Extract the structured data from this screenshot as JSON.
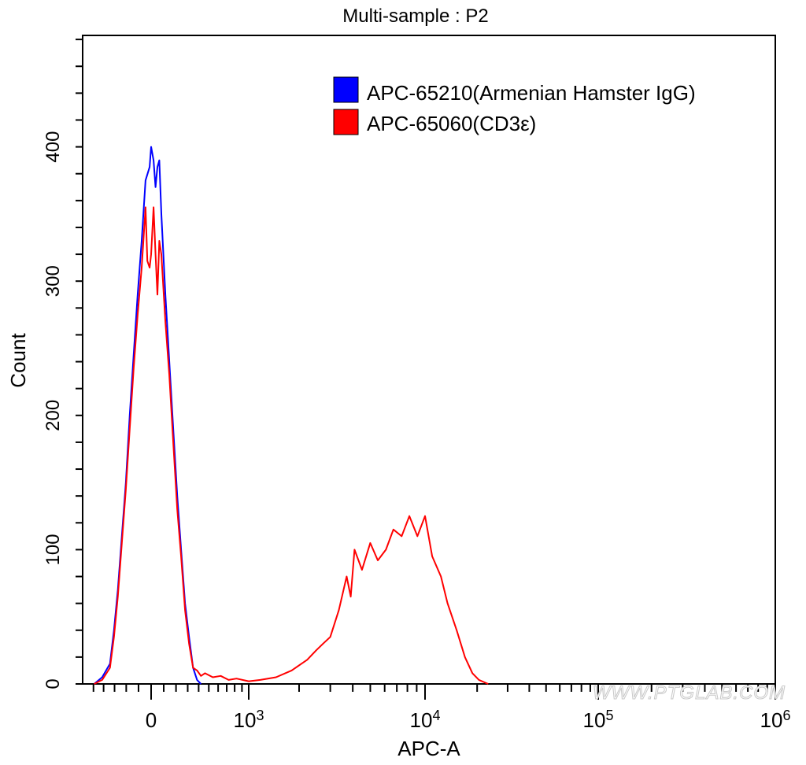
{
  "chart_data": {
    "type": "line",
    "title": "Multi-sample : P2",
    "xlabel": "APC-A",
    "ylabel": "Count",
    "xscale": "biexponential",
    "xlim": [
      -500,
      1000000
    ],
    "ylim": [
      0,
      483
    ],
    "grid": false,
    "legend_position": "top-right",
    "y_ticks": [
      "0",
      "100",
      "200",
      "300",
      "400"
    ],
    "x_ticks": [
      {
        "value": 0,
        "base": "0",
        "exp": ""
      },
      {
        "value": 1000,
        "base": "10",
        "exp": "3"
      },
      {
        "value": 10000,
        "base": "10",
        "exp": "4"
      },
      {
        "value": 100000,
        "base": "10",
        "exp": "5"
      },
      {
        "value": 1000000,
        "base": "10",
        "exp": "6"
      }
    ],
    "series": [
      {
        "name": "APC-65210(Armenian Hamster IgG)",
        "color": "#0000ff",
        "x": [
          -493,
          -414,
          -341,
          -305,
          -271,
          -237,
          -203,
          -171,
          -139,
          -107,
          -75,
          -44,
          -12,
          0,
          19,
          35,
          50,
          65,
          81,
          113,
          145,
          177,
          210,
          243,
          277,
          312,
          348,
          385,
          422
        ],
        "y": [
          0,
          5,
          15,
          40,
          70,
          110,
          150,
          200,
          245,
          290,
          330,
          375,
          385,
          400,
          390,
          370,
          385,
          390,
          350,
          290,
          240,
          190,
          140,
          100,
          60,
          35,
          12,
          3,
          0
        ]
      },
      {
        "name": "APC-65060(CD3ε)",
        "color": "#ff0000",
        "x": [
          -493,
          -414,
          -341,
          -305,
          -271,
          -237,
          -203,
          -171,
          -139,
          -107,
          -75,
          -44,
          -30,
          -12,
          0,
          19,
          35,
          50,
          65,
          81,
          113,
          145,
          177,
          210,
          243,
          277,
          312,
          348,
          385,
          422,
          461,
          542,
          629,
          724,
          825,
          1000,
          1182,
          1470,
          1813,
          2226,
          2500,
          2735,
          3000,
          3348,
          3700,
          3900,
          4092,
          4500,
          4998,
          5500,
          6096,
          6700,
          7440,
          8200,
          9076,
          10000,
          11000,
          12360,
          13500,
          15240,
          17000,
          18780,
          20500,
          23160
        ],
        "y": [
          0,
          3,
          12,
          35,
          65,
          105,
          145,
          190,
          235,
          275,
          310,
          355,
          315,
          310,
          320,
          355,
          320,
          290,
          330,
          320,
          270,
          230,
          180,
          130,
          95,
          55,
          30,
          12,
          10,
          6,
          8,
          5,
          6,
          3,
          4,
          2,
          3,
          5,
          10,
          18,
          25,
          30,
          35,
          55,
          80,
          65,
          100,
          85,
          105,
          92,
          100,
          115,
          110,
          125,
          110,
          125,
          95,
          80,
          60,
          40,
          20,
          8,
          3,
          0
        ]
      }
    ]
  },
  "watermark": "WWW.PTGLAB.COM"
}
